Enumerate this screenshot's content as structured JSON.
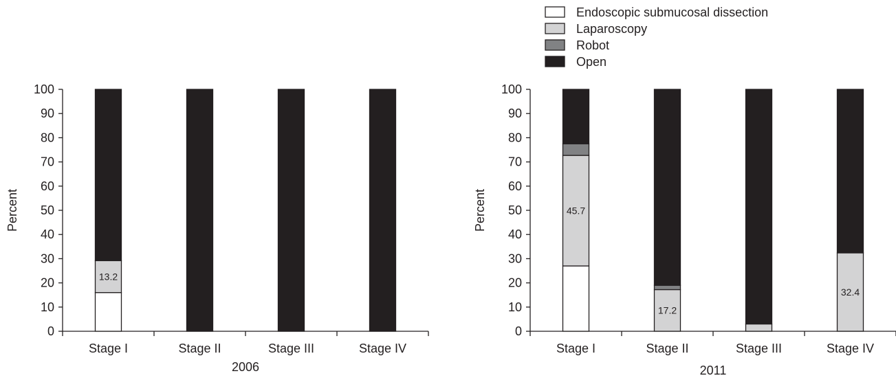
{
  "colors": {
    "Endoscopic submucosal dissection": "#ffffff",
    "Laparoscopy": "#d3d3d4",
    "Robot": "#818284",
    "Open": "#231f20",
    "stroke": "#231f20"
  },
  "legend": {
    "placement": "top-right",
    "items": [
      "Endoscopic submucosal dissection",
      "Laparoscopy",
      "Robot",
      "Open"
    ]
  },
  "chart_data": [
    {
      "type": "bar",
      "stacked": true,
      "title": "",
      "xlabel": "2006",
      "ylabel": "Percent",
      "ylim": [
        0,
        100
      ],
      "yticks": [
        "0",
        "10",
        "20",
        "30",
        "40",
        "50",
        "60",
        "70",
        "80",
        "90",
        "100"
      ],
      "categories": [
        "Stage I",
        "Stage II",
        "Stage III",
        "Stage IV"
      ],
      "series": [
        {
          "name": "Endoscopic submucosal dissection",
          "values": [
            16,
            0,
            0,
            0
          ]
        },
        {
          "name": "Laparoscopy",
          "values": [
            13.2,
            0,
            0,
            0
          ]
        },
        {
          "name": "Robot",
          "values": [
            0,
            0,
            0,
            0
          ]
        },
        {
          "name": "Open",
          "values": [
            70.8,
            100,
            100,
            100
          ]
        }
      ],
      "data_labels": [
        {
          "category": "Stage I",
          "series": "Laparoscopy",
          "text": "13.2"
        }
      ]
    },
    {
      "type": "bar",
      "stacked": true,
      "title": "",
      "xlabel": "2011",
      "ylabel": "Percent",
      "ylim": [
        0,
        100
      ],
      "yticks": [
        "0",
        "10",
        "20",
        "30",
        "40",
        "50",
        "60",
        "70",
        "80",
        "90",
        "100"
      ],
      "categories": [
        "Stage I",
        "Stage II",
        "Stage III",
        "Stage IV"
      ],
      "series": [
        {
          "name": "Endoscopic submucosal dissection",
          "values": [
            27,
            0,
            0,
            0
          ]
        },
        {
          "name": "Laparoscopy",
          "values": [
            45.7,
            17.2,
            3,
            32.4
          ]
        },
        {
          "name": "Robot",
          "values": [
            4.8,
            1.8,
            0,
            0
          ]
        },
        {
          "name": "Open",
          "values": [
            22.5,
            81,
            97,
            67.6
          ]
        }
      ],
      "data_labels": [
        {
          "category": "Stage I",
          "series": "Laparoscopy",
          "text": "45.7"
        },
        {
          "category": "Stage II",
          "series": "Laparoscopy",
          "text": "17.2"
        },
        {
          "category": "Stage IV",
          "series": "Laparoscopy",
          "text": "32.4"
        }
      ]
    }
  ]
}
